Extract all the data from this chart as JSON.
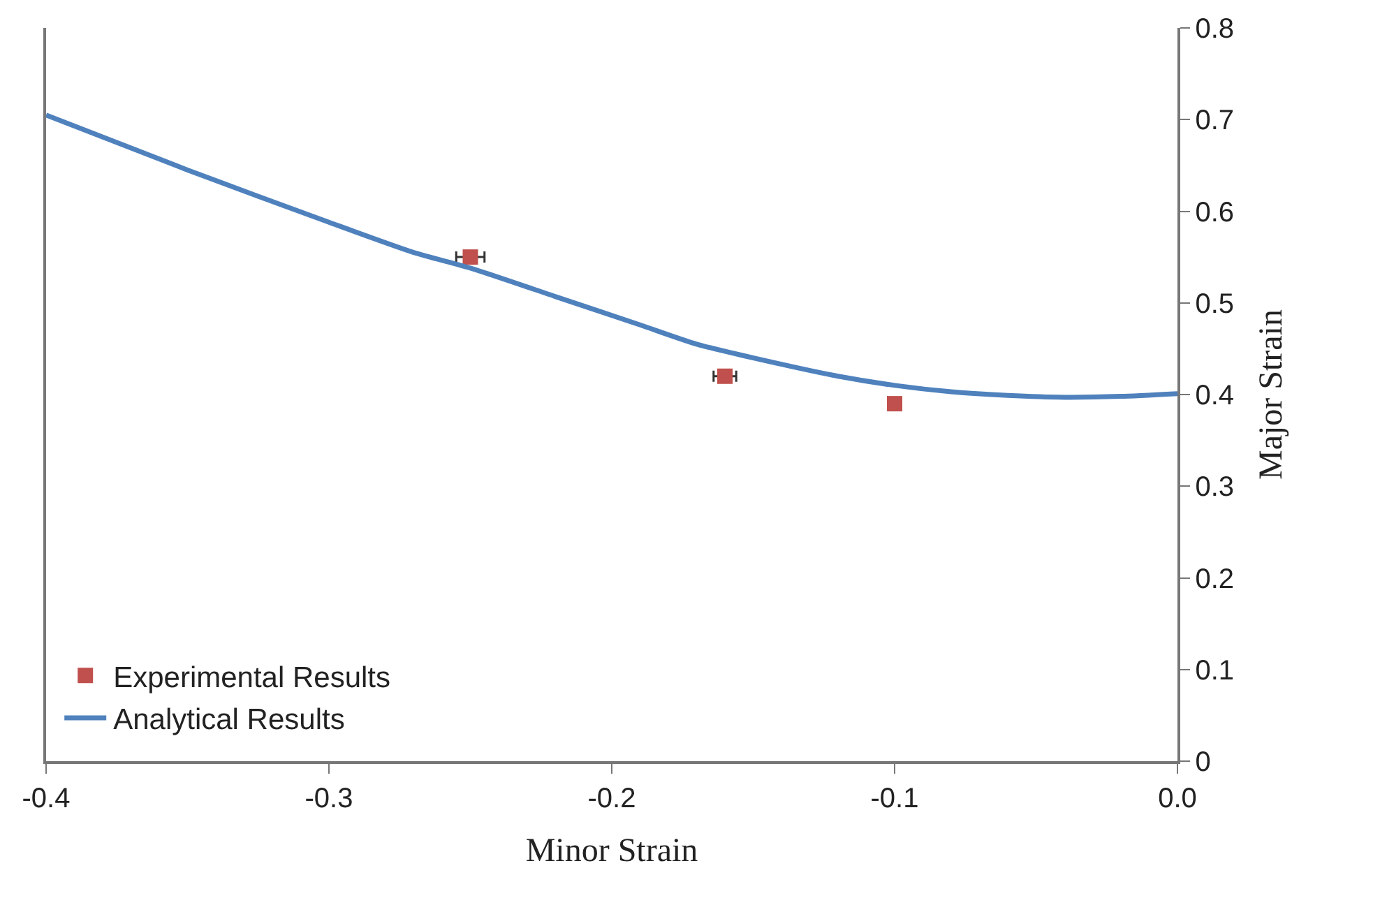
{
  "chart_data": {
    "type": "scatter",
    "xlabel": "Minor Strain",
    "ylabel": "Major Strain",
    "xlim": [
      -0.4,
      0
    ],
    "xticks": [
      -0.4,
      -0.3,
      -0.2,
      -0.1,
      {
        "value": 0,
        "label": "0.0"
      }
    ],
    "ylim": [
      0,
      0.8
    ],
    "yticks": [
      0,
      0.1,
      0.2,
      0.3,
      0.4,
      0.5,
      0.6,
      0.7,
      0.8
    ],
    "grid": false,
    "legend": "bottom left",
    "marker": "square",
    "series": [
      {
        "name": "Experimental Results",
        "color": "#c0504d",
        "x": [
          -0.25,
          -0.16,
          -0.1
        ],
        "values": [
          0.55,
          0.42,
          0.39
        ],
        "xerrors": [
          0.005,
          0.004,
          null
        ]
      },
      {
        "name": "Analytical Results",
        "type": "line",
        "color": "#4f81bd",
        "marker": "none",
        "line_style": "solid",
        "x": [
          -0.4,
          -0.35,
          -0.3,
          -0.27,
          -0.25,
          -0.22,
          -0.19,
          -0.17,
          -0.14,
          -0.12,
          -0.1,
          -0.08,
          -0.06,
          -0.04,
          -0.02,
          0
        ],
        "values": [
          0.705,
          0.645,
          0.588,
          0.555,
          0.538,
          0.507,
          0.476,
          0.455,
          0.433,
          0.42,
          0.41,
          0.403,
          0.399,
          0.397,
          0.398,
          0.401
        ]
      }
    ]
  }
}
